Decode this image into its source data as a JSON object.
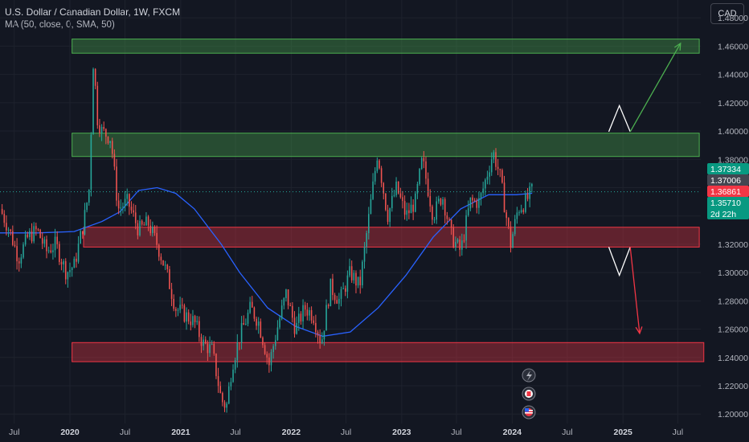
{
  "header": {
    "symbol": "U.S. Dollar / Canadian Dollar, 1W, FXCM",
    "indicator": "MA (50, close, 0, SMA, 50)",
    "currency": "CAD"
  },
  "colors": {
    "background": "#131722",
    "up": "#26a69a",
    "down": "#ef5350",
    "ma": "#2962ff",
    "zone_green": "#4caf50",
    "zone_red": "#f23645"
  },
  "chart_data": {
    "type": "candlestick",
    "y_ticks": [
      "1.48000",
      "1.46000",
      "1.44000",
      "1.42000",
      "1.40000",
      "1.38000",
      "1.36000",
      "1.34000",
      "1.32000",
      "1.30000",
      "1.28000",
      "1.26000",
      "1.24000",
      "1.22000",
      "1.20000"
    ],
    "y_range": [
      1.1933,
      1.4926
    ],
    "x_range": [
      "2019-05-15",
      "2025-09-15"
    ],
    "x_ticks": [
      {
        "label": "Jul",
        "date": "2019-07-01",
        "bold": false
      },
      {
        "label": "2020",
        "date": "2020-01-01",
        "bold": true
      },
      {
        "label": "Jul",
        "date": "2020-07-01",
        "bold": false
      },
      {
        "label": "2021",
        "date": "2021-01-01",
        "bold": true
      },
      {
        "label": "Jul",
        "date": "2021-07-01",
        "bold": false
      },
      {
        "label": "2022",
        "date": "2022-01-01",
        "bold": true
      },
      {
        "label": "Jul",
        "date": "2022-07-01",
        "bold": false
      },
      {
        "label": "2023",
        "date": "2023-01-01",
        "bold": true
      },
      {
        "label": "Jul",
        "date": "2023-07-01",
        "bold": false
      },
      {
        "label": "2024",
        "date": "2024-01-01",
        "bold": true
      },
      {
        "label": "Jul",
        "date": "2024-07-01",
        "bold": false
      },
      {
        "label": "2025",
        "date": "2025-01-01",
        "bold": true
      },
      {
        "label": "Jul",
        "date": "2025-07-01",
        "bold": false
      }
    ],
    "price_path": [
      [
        "2019-05-15",
        1.345
      ],
      [
        "2019-06-15",
        1.33
      ],
      [
        "2019-07-15",
        1.31
      ],
      [
        "2019-08-15",
        1.325
      ],
      [
        "2019-09-15",
        1.33
      ],
      [
        "2019-10-15",
        1.315
      ],
      [
        "2019-11-15",
        1.32
      ],
      [
        "2019-12-20",
        1.3
      ],
      [
        "2020-01-15",
        1.305
      ],
      [
        "2020-02-15",
        1.335
      ],
      [
        "2020-03-05",
        1.36
      ],
      [
        "2020-03-19",
        1.455
      ],
      [
        "2020-03-30",
        1.41
      ],
      [
        "2020-04-15",
        1.4
      ],
      [
        "2020-05-15",
        1.395
      ],
      [
        "2020-06-08",
        1.345
      ],
      [
        "2020-07-10",
        1.35
      ],
      [
        "2020-08-15",
        1.33
      ],
      [
        "2020-09-15",
        1.335
      ],
      [
        "2020-10-15",
        1.32
      ],
      [
        "2020-11-15",
        1.3
      ],
      [
        "2020-12-15",
        1.275
      ],
      [
        "2021-01-15",
        1.27
      ],
      [
        "2021-02-15",
        1.265
      ],
      [
        "2021-03-15",
        1.25
      ],
      [
        "2021-04-15",
        1.245
      ],
      [
        "2021-05-15",
        1.21
      ],
      [
        "2021-06-01",
        1.205
      ],
      [
        "2021-06-20",
        1.235
      ],
      [
        "2021-07-15",
        1.255
      ],
      [
        "2021-08-20",
        1.275
      ],
      [
        "2021-09-15",
        1.265
      ],
      [
        "2021-10-20",
        1.235
      ],
      [
        "2021-11-15",
        1.26
      ],
      [
        "2021-12-15",
        1.285
      ],
      [
        "2022-01-15",
        1.26
      ],
      [
        "2022-02-15",
        1.275
      ],
      [
        "2022-03-15",
        1.27
      ],
      [
        "2022-04-10",
        1.25
      ],
      [
        "2022-05-10",
        1.29
      ],
      [
        "2022-06-10",
        1.28
      ],
      [
        "2022-07-15",
        1.3
      ],
      [
        "2022-08-15",
        1.29
      ],
      [
        "2022-09-15",
        1.34
      ],
      [
        "2022-10-13",
        1.385
      ],
      [
        "2022-11-15",
        1.34
      ],
      [
        "2022-12-15",
        1.36
      ],
      [
        "2023-01-15",
        1.34
      ],
      [
        "2023-02-15",
        1.35
      ],
      [
        "2023-03-10",
        1.38
      ],
      [
        "2023-04-15",
        1.34
      ],
      [
        "2023-05-15",
        1.355
      ],
      [
        "2023-06-15",
        1.325
      ],
      [
        "2023-07-15",
        1.315
      ],
      [
        "2023-08-15",
        1.35
      ],
      [
        "2023-09-15",
        1.35
      ],
      [
        "2023-10-30",
        1.385
      ],
      [
        "2023-11-20",
        1.37
      ],
      [
        "2023-12-27",
        1.32
      ],
      [
        "2024-01-20",
        1.345
      ],
      [
        "2024-02-15",
        1.35
      ],
      [
        "2024-03-07",
        1.358
      ]
    ],
    "ma_path": [
      [
        "2019-05-15",
        1.328
      ],
      [
        "2019-09-15",
        1.328
      ],
      [
        "2020-01-15",
        1.329
      ],
      [
        "2020-04-15",
        1.336
      ],
      [
        "2020-06-15",
        1.343
      ],
      [
        "2020-08-15",
        1.358
      ],
      [
        "2020-10-15",
        1.36
      ],
      [
        "2020-12-15",
        1.356
      ],
      [
        "2021-02-15",
        1.345
      ],
      [
        "2021-05-15",
        1.32
      ],
      [
        "2021-07-15",
        1.3
      ],
      [
        "2021-10-15",
        1.275
      ],
      [
        "2022-01-15",
        1.262
      ],
      [
        "2022-04-15",
        1.255
      ],
      [
        "2022-07-15",
        1.258
      ],
      [
        "2022-10-15",
        1.275
      ],
      [
        "2023-01-15",
        1.298
      ],
      [
        "2023-04-15",
        1.325
      ],
      [
        "2023-07-15",
        1.345
      ],
      [
        "2023-10-15",
        1.355
      ],
      [
        "2024-01-15",
        1.355
      ],
      [
        "2024-03-07",
        1.356
      ]
    ],
    "zones": [
      {
        "kind": "resistance",
        "x0": "2020-01-08",
        "x1": "2025-09-10",
        "top": 1.465,
        "bottom": 1.455,
        "color": "#4caf50"
      },
      {
        "kind": "resistance",
        "x0": "2020-01-08",
        "x1": "2025-09-10",
        "top": 1.3985,
        "bottom": 1.382,
        "color": "#4caf50"
      },
      {
        "kind": "support",
        "x0": "2020-02-15",
        "x1": "2025-09-10",
        "top": 1.332,
        "bottom": 1.318,
        "color": "#f23645"
      },
      {
        "kind": "support",
        "x0": "2020-01-08",
        "x1": "2025-09-25",
        "top": 1.2505,
        "bottom": 1.237,
        "color": "#f23645"
      }
    ],
    "scenarios": [
      {
        "color": "#ffffff",
        "points": [
          [
            "2024-11-15",
            1.3995
          ],
          [
            "2024-12-20",
            1.418
          ],
          [
            "2025-01-25",
            1.3995
          ]
        ]
      },
      {
        "color": "#4caf50",
        "arrow": true,
        "points": [
          [
            "2025-01-25",
            1.3995
          ],
          [
            "2025-07-10",
            1.462
          ]
        ]
      },
      {
        "color": "#ffffff",
        "points": [
          [
            "2024-11-15",
            1.318
          ],
          [
            "2024-12-20",
            1.298
          ],
          [
            "2025-01-25",
            1.318
          ]
        ]
      },
      {
        "color": "#f23645",
        "arrow": true,
        "points": [
          [
            "2025-01-25",
            1.318
          ],
          [
            "2025-02-25",
            1.257
          ]
        ]
      }
    ],
    "price_labels": [
      {
        "text": "1.37334",
        "value": 1.37334,
        "bg": "#089981",
        "fg": "#ffffff"
      },
      {
        "text": "1.37006",
        "value": 1.37006,
        "bg": "#434651",
        "fg": "#ffffff"
      },
      {
        "text": "1.36861",
        "value": 1.36861,
        "bg": "#f23645",
        "fg": "#ffffff"
      },
      {
        "text": "1.35710",
        "value": 1.3571,
        "bg": "#089981",
        "fg": "#ffffff",
        "sub": "2d 22h"
      }
    ],
    "current_price": 1.3571
  }
}
